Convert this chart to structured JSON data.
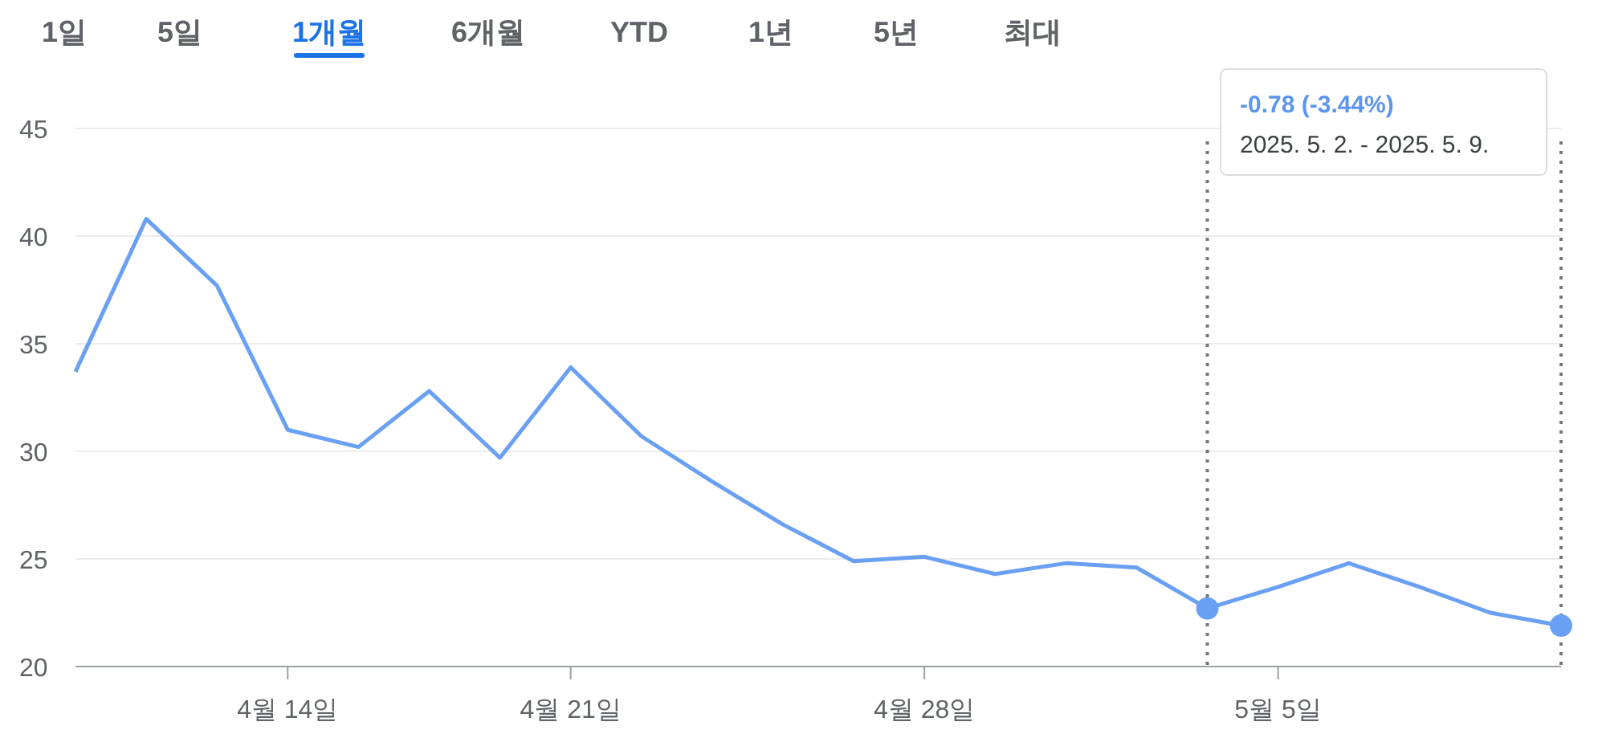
{
  "chart_data": {
    "type": "line",
    "categories": [
      null,
      null,
      null,
      "4월 14일",
      null,
      null,
      null,
      "4월 21일",
      null,
      null,
      null,
      null,
      "4월 28일",
      null,
      null,
      null,
      null,
      "5월 5일",
      null,
      null,
      null,
      null
    ],
    "series": [
      {
        "color": "#6aa0f4",
        "values": [
          33.7,
          40.8,
          37.7,
          31.0,
          30.2,
          32.8,
          29.7,
          33.9,
          30.7,
          28.6,
          26.6,
          24.9,
          25.1,
          24.3,
          24.8,
          24.6,
          22.7,
          23.7,
          24.8,
          23.7,
          22.5,
          21.9
        ]
      },
      {
        "type": "scatter",
        "marker": "circle",
        "color": "#6aa0f4",
        "values": [
          null,
          null,
          null,
          null,
          null,
          null,
          null,
          null,
          null,
          null,
          null,
          null,
          null,
          null,
          null,
          null,
          22.7,
          null,
          null,
          null,
          null,
          21.9
        ]
      }
    ],
    "ylim": [
      20,
      45
    ],
    "yticks": [
      20,
      25,
      30,
      35,
      40,
      45
    ],
    "grid": "y",
    "annotations": [
      "1일",
      "5일",
      "1개월",
      "6개월",
      "YTD",
      "1년",
      "5년",
      "최대",
      "-0.78 (-3.44%)",
      "2025. 5. 2. - 2025. 5. 9."
    ]
  }
}
